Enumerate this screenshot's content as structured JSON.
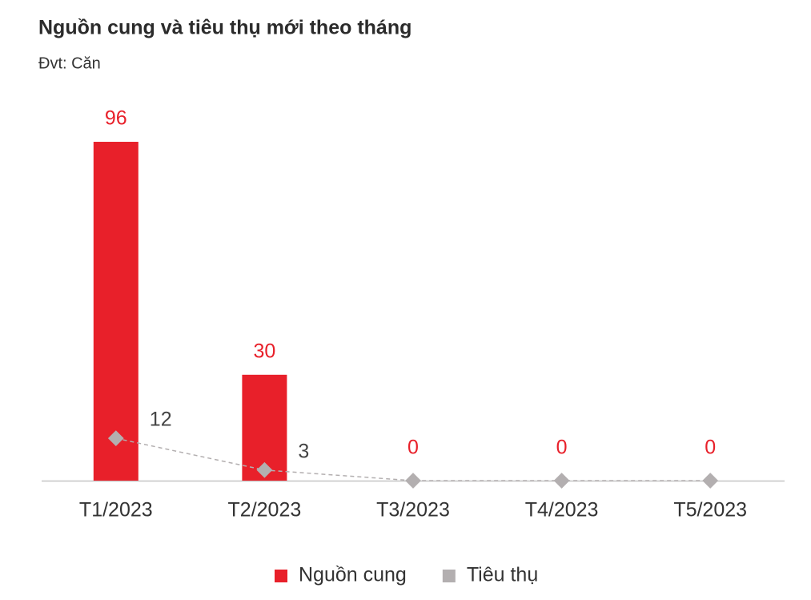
{
  "chart_data": {
    "type": "bar",
    "title": "Nguồn cung và tiêu thụ mới theo tháng",
    "subtitle": "Đvt: Căn",
    "categories": [
      "T1/2023",
      "T2/2023",
      "T3/2023",
      "T4/2023",
      "T5/2023"
    ],
    "series": [
      {
        "name": "Nguồn cung",
        "type": "bar",
        "color": "#e8202a",
        "values": [
          96,
          30,
          0,
          0,
          0
        ]
      },
      {
        "name": "Tiêu thụ",
        "type": "line",
        "color": "#b3afb0",
        "values": [
          12,
          3,
          0,
          0,
          0
        ],
        "value_labels": [
          "12",
          "3",
          null,
          null,
          null
        ]
      }
    ],
    "ylim": [
      0,
      100
    ]
  }
}
